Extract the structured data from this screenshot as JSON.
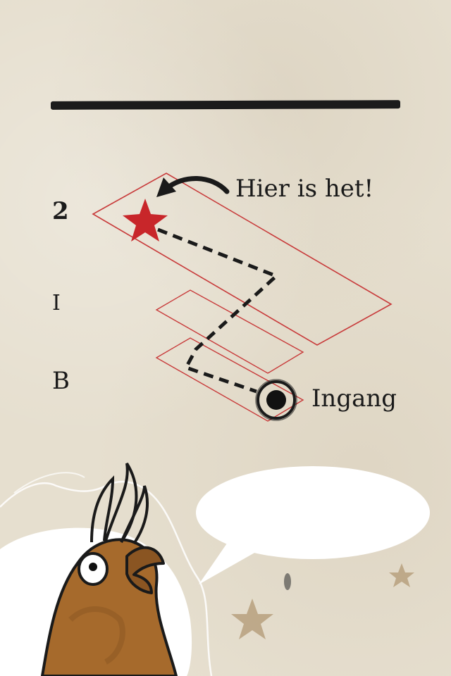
{
  "floors": {
    "upper": "2",
    "first": "I",
    "basement": "B"
  },
  "callouts": {
    "destination": "Hier is het!",
    "entrance": "Ingang"
  },
  "colors": {
    "floor_outline": "#c83a3a",
    "star": "#c8262a",
    "route": "#1a1a1a",
    "paper": "#e6dfcf",
    "bird_body": "#a66a2c"
  },
  "icons": {
    "destination": "star-icon",
    "entrance": "entrance-circle-icon",
    "pointer": "curved-arrow-icon"
  },
  "dialog": {
    "text": ""
  }
}
